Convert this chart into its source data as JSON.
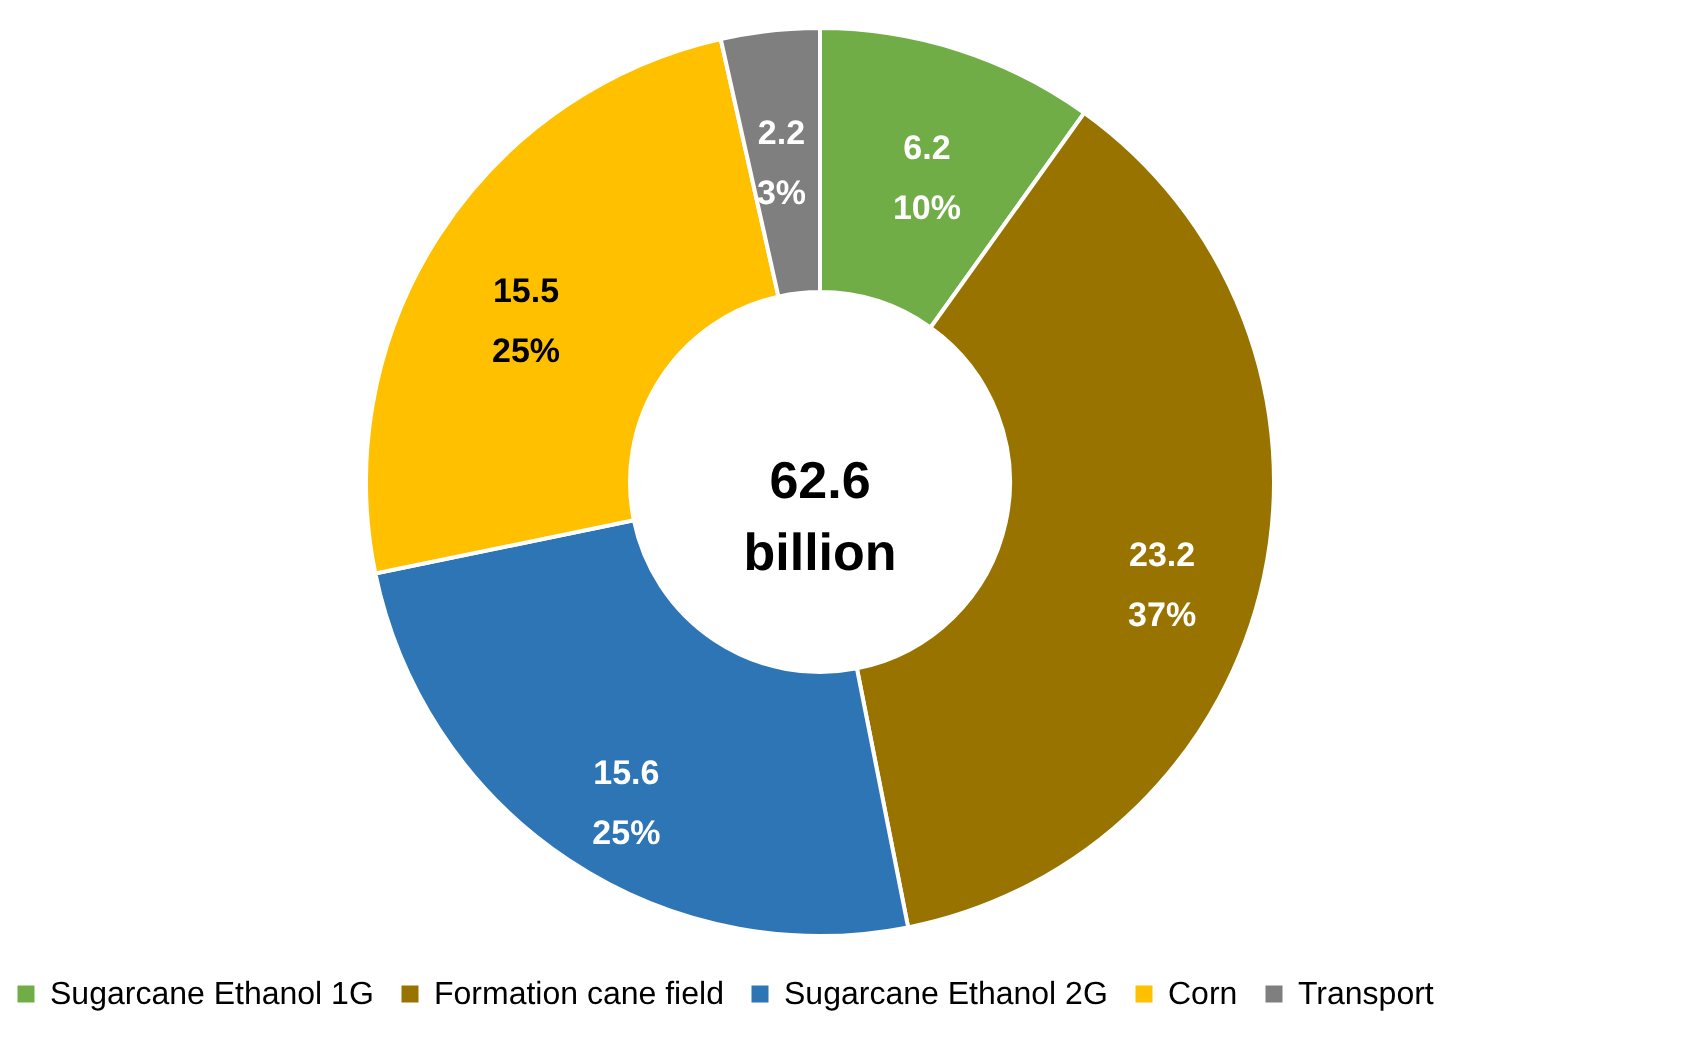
{
  "chart_data": {
    "type": "donut",
    "categories": [
      "Sugarcane Ethanol 1G",
      "Formation cane field",
      "Sugarcane Ethanol 2G",
      "Corn",
      "Transport"
    ],
    "values": [
      6.2,
      23.2,
      15.6,
      15.5,
      2.2
    ],
    "colors": [
      "#70ad47",
      "#997300",
      "#2e75b6",
      "#ffc000",
      "#7f7f7f"
    ],
    "value_labels": [
      "6.2\n10%",
      "23.2\n37%",
      "15.6\n25%",
      "15.5\n25%",
      "2.2\n3%"
    ],
    "annotations": [
      "62.6\nbillion"
    ],
    "legend": "bottom"
  }
}
